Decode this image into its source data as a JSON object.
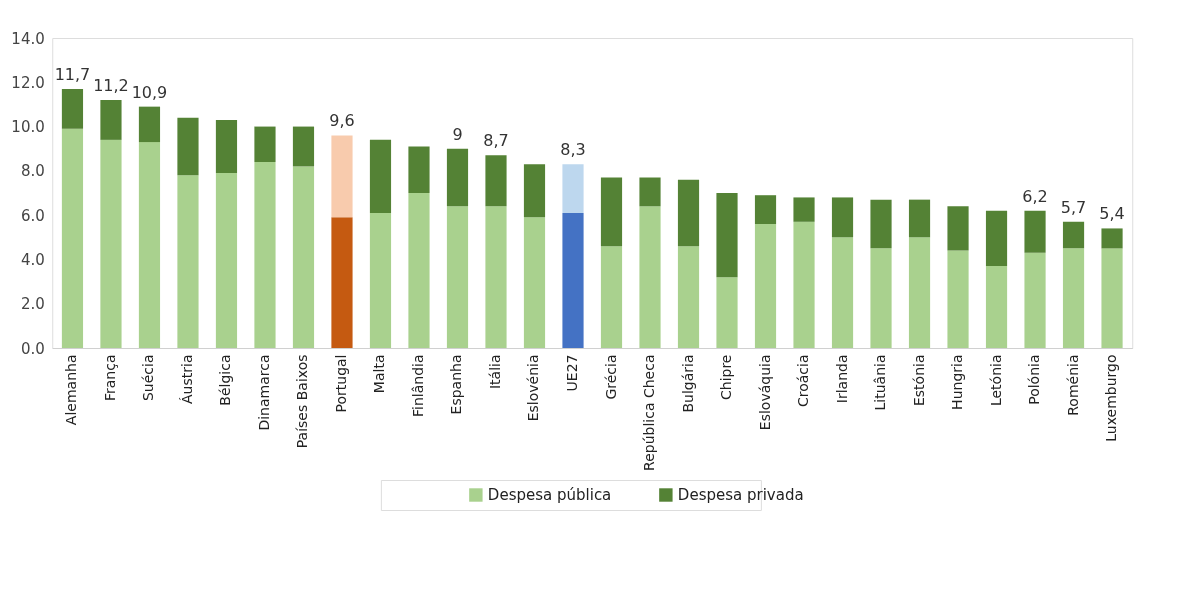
{
  "chart_data": {
    "type": "bar",
    "stacked": true,
    "categories": [
      "Alemanha",
      "França",
      "Suécia",
      "Áustria",
      "Bélgica",
      "Dinamarca",
      "Países Baixos",
      "Portugal",
      "Malta",
      "Finlândia",
      "Espanha",
      "Itália",
      "Eslovénia",
      "UE27",
      "Grécia",
      "República Checa",
      "Bulgária",
      "Chipre",
      "Eslováquia",
      "Croácia",
      "Irlanda",
      "Lituânia",
      "Estónia",
      "Hungria",
      "Letónia",
      "Polónia",
      "Roménia",
      "Luxemburgo"
    ],
    "series": [
      {
        "name": "Despesa pública",
        "color": "#a9d18e",
        "colors": [
          "#a9d18e",
          "#a9d18e",
          "#a9d18e",
          "#a9d18e",
          "#a9d18e",
          "#a9d18e",
          "#a9d18e",
          "#c55a11",
          "#a9d18e",
          "#a9d18e",
          "#a9d18e",
          "#a9d18e",
          "#a9d18e",
          "#4472c4",
          "#a9d18e",
          "#a9d18e",
          "#a9d18e",
          "#a9d18e",
          "#a9d18e",
          "#a9d18e",
          "#a9d18e",
          "#a9d18e",
          "#a9d18e",
          "#a9d18e",
          "#a9d18e",
          "#a9d18e",
          "#a9d18e",
          "#a9d18e"
        ],
        "values": [
          9.9,
          9.4,
          9.3,
          7.8,
          7.9,
          8.4,
          8.2,
          5.9,
          6.1,
          7.0,
          6.4,
          6.4,
          5.9,
          6.1,
          4.6,
          6.4,
          4.6,
          3.2,
          5.6,
          5.7,
          5.0,
          4.5,
          5.0,
          4.4,
          3.7,
          4.3,
          4.5,
          4.5
        ]
      },
      {
        "name": "Despesa privada",
        "color": "#548235",
        "colors": [
          "#548235",
          "#548235",
          "#548235",
          "#548235",
          "#548235",
          "#548235",
          "#548235",
          "#f8cbad",
          "#548235",
          "#548235",
          "#548235",
          "#548235",
          "#548235",
          "#bdd7ee",
          "#548235",
          "#548235",
          "#548235",
          "#548235",
          "#548235",
          "#548235",
          "#548235",
          "#548235",
          "#548235",
          "#548235",
          "#548235",
          "#548235",
          "#548235",
          "#548235"
        ],
        "values": [
          1.8,
          1.8,
          1.6,
          2.6,
          2.4,
          1.6,
          1.8,
          3.7,
          3.3,
          2.1,
          2.6,
          2.3,
          2.4,
          2.2,
          3.1,
          1.3,
          3.0,
          3.8,
          1.3,
          1.1,
          1.8,
          2.2,
          1.7,
          2.0,
          2.5,
          1.9,
          1.2,
          0.9
        ]
      }
    ],
    "totals": [
      "11,7",
      "11,2",
      "10,9",
      null,
      null,
      null,
      null,
      "9,6",
      null,
      null,
      "9",
      "8,7",
      null,
      "8,3",
      null,
      null,
      null,
      null,
      null,
      null,
      null,
      null,
      null,
      null,
      null,
      "6,2",
      "5,7",
      "5,4"
    ],
    "ylim": [
      0,
      14
    ],
    "yticks": [
      {
        "value": 0,
        "label": "0.0"
      },
      {
        "value": 2,
        "label": "2.0"
      },
      {
        "value": 4,
        "label": "4.0"
      },
      {
        "value": 6,
        "label": "6.0"
      },
      {
        "value": 8,
        "label": "8.0"
      },
      {
        "value": 10,
        "label": "10.0"
      },
      {
        "value": 12,
        "label": "12.0"
      },
      {
        "value": 14,
        "label": "14.0"
      }
    ],
    "grid": false,
    "legend": "bottom"
  }
}
